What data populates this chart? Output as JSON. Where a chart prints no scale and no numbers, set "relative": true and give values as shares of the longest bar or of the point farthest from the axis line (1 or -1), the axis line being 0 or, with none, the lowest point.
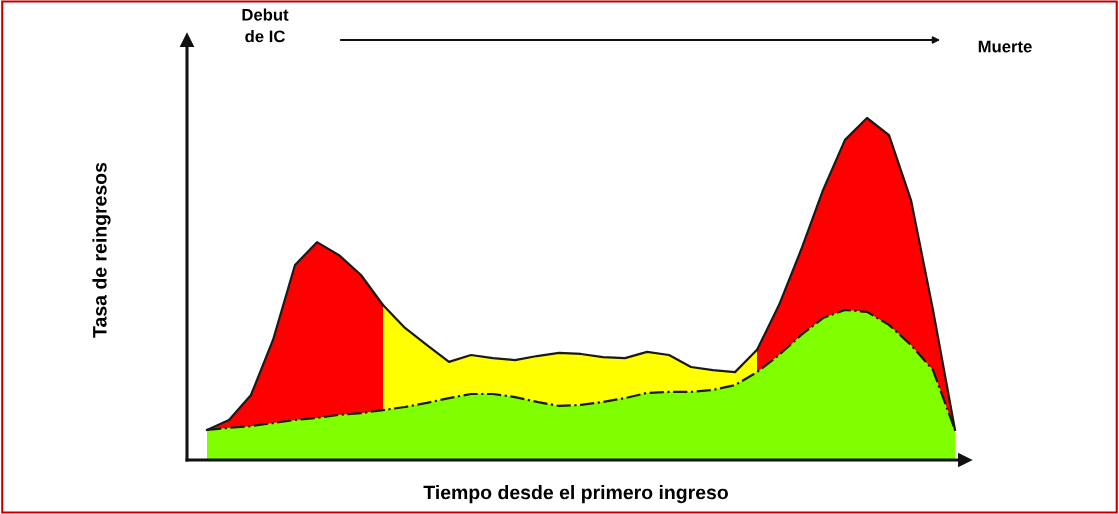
{
  "chart_data": {
    "type": "area",
    "relative": true,
    "xlabel": "Tiempo desde el primero ingreso",
    "ylabel": "Tasa de reingresos",
    "annotations": [
      "Debut\nde IC",
      "Muerte"
    ],
    "categories": [
      null,
      null,
      null,
      null,
      null,
      null,
      null,
      null,
      null,
      null,
      null,
      null,
      null,
      null,
      null,
      null,
      null,
      null,
      null,
      null,
      null,
      null,
      null,
      null,
      null,
      null,
      null,
      null,
      null,
      null,
      null,
      null,
      null,
      null,
      null
    ],
    "series": [
      {
        "color": "#ff0000",
        "line_style": "solid",
        "values": [
          0.088,
          0.117,
          0.19,
          0.351,
          0.57,
          0.637,
          0.599,
          0.541,
          0.453,
          null,
          null,
          null,
          null,
          null,
          null,
          null,
          null,
          null,
          null,
          null,
          null,
          null,
          null,
          null,
          null,
          null,
          null,
          null,
          null,
          null,
          null,
          null,
          null,
          null,
          null
        ]
      },
      {
        "color": "#ffff00",
        "line_style": "solid",
        "values": [
          null,
          null,
          null,
          null,
          null,
          null,
          null,
          null,
          0.453,
          0.386,
          0.336,
          0.287,
          0.307,
          0.298,
          0.292,
          0.304,
          0.313,
          0.31,
          0.301,
          0.298,
          0.316,
          0.307,
          0.272,
          0.263,
          0.257,
          0.322,
          null,
          null,
          null,
          null,
          null,
          null,
          null,
          null,
          null
        ]
      },
      {
        "color": "#ff0000",
        "line_style": "solid",
        "values": [
          null,
          null,
          null,
          null,
          null,
          null,
          null,
          null,
          null,
          null,
          null,
          null,
          null,
          null,
          null,
          null,
          null,
          null,
          null,
          null,
          null,
          null,
          null,
          null,
          null,
          0.322,
          0.453,
          0.614,
          0.789,
          0.936,
          1,
          0.95,
          0.76,
          0.439,
          0.088
        ]
      },
      {
        "color": "#80ff00",
        "line_style": "dashed",
        "values": [
          0.088,
          0.094,
          0.099,
          0.108,
          0.117,
          0.123,
          0.132,
          0.137,
          0.146,
          0.155,
          0.167,
          0.181,
          0.193,
          0.193,
          0.184,
          0.17,
          0.158,
          0.161,
          0.17,
          0.181,
          0.196,
          0.199,
          0.199,
          0.205,
          0.219,
          0.257,
          0.307,
          0.365,
          0.415,
          0.439,
          0.433,
          0.395,
          0.336,
          0.263,
          0.088
        ]
      }
    ],
    "marker": "none",
    "legend": false
  }
}
